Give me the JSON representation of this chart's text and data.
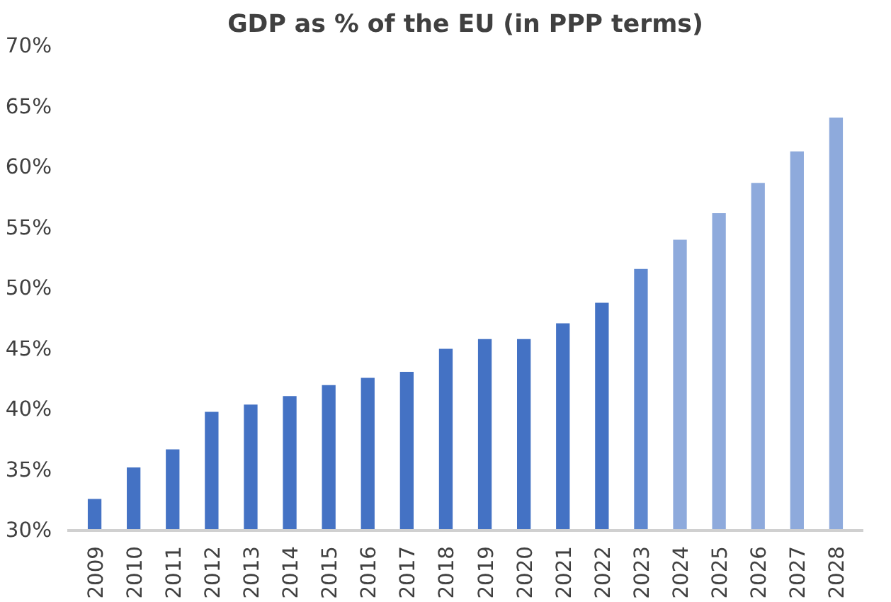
{
  "chart_data": {
    "type": "bar",
    "title": "GDP as % of the EU (in PPP terms)",
    "categories": [
      "2009",
      "2010",
      "2011",
      "2012",
      "2013",
      "2014",
      "2015",
      "2016",
      "2017",
      "2018",
      "2019",
      "2020",
      "2021",
      "2022",
      "2023",
      "2024",
      "2025",
      "2026",
      "2027",
      "2028"
    ],
    "values": [
      32.6,
      35.2,
      36.7,
      39.8,
      40.4,
      41.1,
      42.0,
      42.6,
      43.1,
      45.0,
      45.8,
      45.8,
      47.1,
      48.8,
      51.6,
      54.0,
      56.2,
      58.7,
      61.3,
      64.1
    ],
    "colors": [
      "#4472c4",
      "#4472c4",
      "#4472c4",
      "#4472c4",
      "#4472c4",
      "#4472c4",
      "#4472c4",
      "#4472c4",
      "#4472c4",
      "#4472c4",
      "#4472c4",
      "#4472c4",
      "#4472c4",
      "#4472c4",
      "#5f88cf",
      "#8eaadc",
      "#8eaadc",
      "#8eaadc",
      "#8eaadc",
      "#8eaadc"
    ],
    "ylim": [
      30,
      70
    ],
    "yticks": [
      {
        "value": 30,
        "label": "30%"
      },
      {
        "value": 35,
        "label": "35%"
      },
      {
        "value": 40,
        "label": "40%"
      },
      {
        "value": 45,
        "label": "45%"
      },
      {
        "value": 50,
        "label": "50%"
      },
      {
        "value": 55,
        "label": "55%"
      },
      {
        "value": 60,
        "label": "60%"
      },
      {
        "value": 65,
        "label": "65%"
      },
      {
        "value": 70,
        "label": "70%"
      }
    ],
    "grid": false
  }
}
